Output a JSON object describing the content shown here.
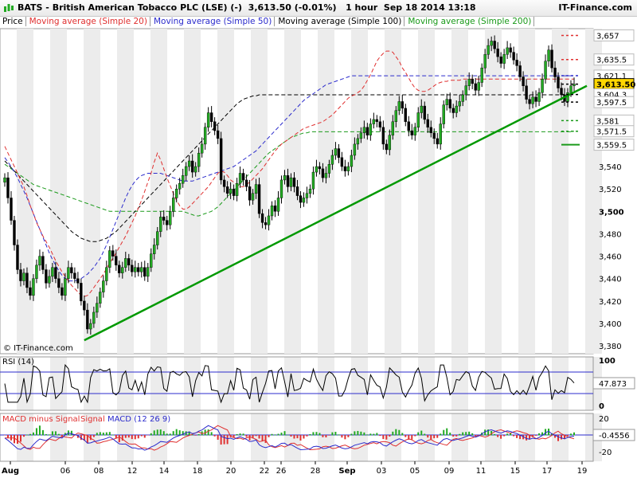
{
  "header": {
    "title": "BATS - British American Tobacco PLC (LSE) (-)",
    "last": "3,613.50 (-0.01%)",
    "interval": "1 hour",
    "datetime": "Sep 18 2014 13:18",
    "brand": "IT-Finance.com"
  },
  "legend": {
    "price": "Price",
    "ma20": "Moving average (Simple 20)",
    "ma50": "Moving average (Simple 50)",
    "ma100": "Moving average (Simple 100)",
    "ma200": "Moving average (Simple 200)"
  },
  "watermark": "© IT-Finance.com",
  "rsi": {
    "label": "RSI (14)",
    "value": "47.873",
    "ticks": [
      "100",
      "50",
      "0"
    ]
  },
  "macd": {
    "label_hist": "MACD minus Signal",
    "label_signal": "Signal",
    "label_macd": "MACD (12 26 9)",
    "value": "-0.4556",
    "ticks": [
      "20",
      "0",
      "-20"
    ]
  },
  "colors": {
    "up": "#22aa22",
    "down": "#000000",
    "ma20": "#e03030",
    "ma50": "#2b2bcc",
    "ma100": "#000000",
    "ma200": "#1a9a1a",
    "trend": "#009900",
    "last_tag": "#ffd700"
  },
  "chart_data": {
    "type": "candlestick",
    "interval": "1 hour",
    "ylim": [
      3373,
      3663
    ],
    "y_ticks": [
      3380,
      3400,
      3420,
      3440,
      3460,
      3480,
      3500,
      3520,
      3540
    ],
    "x_ticks": [
      "Aug",
      "06",
      "08",
      "12",
      "14",
      "18",
      "20",
      "22",
      "26",
      "28",
      "Sep",
      "03",
      "05",
      "09",
      "11",
      "15",
      "17",
      "19"
    ],
    "right_levels": [
      {
        "label": "3,657",
        "value": 3657,
        "color": "#e03030"
      },
      {
        "label": "3,635.5",
        "value": 3635.5,
        "color": "#e03030"
      },
      {
        "label": "3,621.1",
        "value": 3621.1,
        "color": "#2b2bcc"
      },
      {
        "label": "3,613.50",
        "value": 3613.5,
        "color": "#000000"
      },
      {
        "label": "3,604.3",
        "value": 3604.3,
        "color": "#000000"
      },
      {
        "label": "3,597.5",
        "value": 3597.5,
        "color": "#000000"
      },
      {
        "label": "3,581",
        "value": 3581,
        "color": "#1a9a1a"
      },
      {
        "label": "3,571.5",
        "value": 3571.5,
        "color": "#1a9a1a"
      },
      {
        "label": "3,559.5",
        "value": 3559.5,
        "color": "#1a9a1a"
      }
    ],
    "close": [
      3530,
      3512,
      3492,
      3470,
      3448,
      3438,
      3445,
      3432,
      3425,
      3440,
      3452,
      3460,
      3448,
      3436,
      3442,
      3450,
      3440,
      3432,
      3425,
      3440,
      3450,
      3445,
      3440,
      3436,
      3420,
      3412,
      3395,
      3400,
      3410,
      3418,
      3428,
      3438,
      3450,
      3465,
      3460,
      3452,
      3445,
      3450,
      3458,
      3452,
      3446,
      3450,
      3446,
      3450,
      3442,
      3450,
      3462,
      3470,
      3482,
      3495,
      3492,
      3488,
      3500,
      3512,
      3520,
      3525,
      3532,
      3540,
      3545,
      3535,
      3540,
      3552,
      3560,
      3575,
      3588,
      3580,
      3572,
      3565,
      3528,
      3522,
      3516,
      3520,
      3514,
      3525,
      3534,
      3528,
      3522,
      3510,
      3516,
      3524,
      3498,
      3490,
      3488,
      3496,
      3505,
      3500,
      3512,
      3528,
      3532,
      3522,
      3530,
      3522,
      3514,
      3508,
      3512,
      3516,
      3520,
      3535,
      3540,
      3538,
      3530,
      3534,
      3542,
      3550,
      3556,
      3548,
      3540,
      3536,
      3540,
      3550,
      3560,
      3565,
      3570,
      3575,
      3568,
      3578,
      3582,
      3580,
      3575,
      3560,
      3555,
      3568,
      3580,
      3590,
      3598,
      3592,
      3580,
      3572,
      3568,
      3575,
      3588,
      3594,
      3582,
      3575,
      3570,
      3565,
      3560,
      3578,
      3595,
      3600,
      3592,
      3588,
      3594,
      3598,
      3604,
      3612,
      3618,
      3614,
      3608,
      3615,
      3628,
      3640,
      3648,
      3652,
      3645,
      3638,
      3632,
      3640,
      3646,
      3642,
      3635,
      3630,
      3620,
      3612,
      3600,
      3596,
      3602,
      3598,
      3606,
      3618,
      3634,
      3644,
      3628,
      3620,
      3610,
      3604,
      3598,
      3606,
      3612,
      3613.5
    ],
    "ma20": [
      3558,
      3552,
      3546,
      3540,
      3534,
      3528,
      3522,
      3514,
      3505,
      3498,
      3490,
      3484,
      3478,
      3473,
      3468,
      3462,
      3456,
      3451,
      3446,
      3442,
      3438,
      3434,
      3431,
      3428,
      3425,
      3424,
      3425,
      3428,
      3432,
      3436,
      3440,
      3444,
      3449,
      3454,
      3458,
      3463,
      3468,
      3473,
      3478,
      3484,
      3490,
      3496,
      3503,
      3510,
      3518,
      3526,
      3534,
      3544,
      3552,
      3546,
      3538,
      3530,
      3523,
      3516,
      3510,
      3505,
      3502,
      3502,
      3504,
      3507,
      3510,
      3513,
      3516,
      3519,
      3522,
      3526,
      3530,
      3534,
      3536,
      3535,
      3532,
      3528,
      3526,
      3524,
      3522,
      3522,
      3524,
      3526,
      3529,
      3532,
      3535,
      3538,
      3542,
      3546,
      3550,
      3554,
      3557,
      3560,
      3562,
      3564,
      3566,
      3568,
      3570,
      3572,
      3574,
      3575,
      3576,
      3577,
      3578,
      3579,
      3580,
      3582,
      3584,
      3586,
      3589,
      3592,
      3595,
      3598,
      3601,
      3603,
      3604,
      3606,
      3608,
      3612,
      3617,
      3622,
      3628,
      3634,
      3638,
      3641,
      3643,
      3643,
      3642,
      3638,
      3634,
      3628,
      3624,
      3619,
      3614,
      3610,
      3608,
      3607,
      3607,
      3608,
      3610,
      3612,
      3614,
      3615,
      3616,
      3616,
      3617,
      3617,
      3617,
      3617,
      3618,
      3618,
      3618,
      3618,
      3618,
      3618,
      3618,
      3618,
      3618,
      3618,
      3618,
      3618,
      3618,
      3618,
      3618,
      3618,
      3618,
      3618,
      3618,
      3618,
      3618,
      3618,
      3618,
      3618,
      3618,
      3618,
      3618,
      3618,
      3618,
      3618,
      3618,
      3618,
      3618,
      3618,
      3618,
      3618
    ],
    "ma50": [
      3548,
      3544,
      3540,
      3535,
      3530,
      3524,
      3518,
      3512,
      3505,
      3498,
      3491,
      3484,
      3477,
      3470,
      3463,
      3457,
      3452,
      3447,
      3443,
      3440,
      3438,
      3438,
      3438,
      3439,
      3440,
      3442,
      3444,
      3447,
      3450,
      3454,
      3458,
      3464,
      3470,
      3477,
      3484,
      3491,
      3498,
      3505,
      3512,
      3518,
      3523,
      3527,
      3530,
      3532,
      3533,
      3534,
      3534,
      3534,
      3534,
      3534,
      3533,
      3532,
      3531,
      3530,
      3529,
      3528,
      3527,
      3527,
      3527,
      3527,
      3528,
      3529,
      3530,
      3531,
      3532,
      3533,
      3534,
      3535,
      3536,
      3537,
      3538,
      3539,
      3540,
      3542,
      3544,
      3546,
      3548,
      3550,
      3552,
      3554,
      3557,
      3560,
      3563,
      3566,
      3569,
      3572,
      3575,
      3578,
      3581,
      3584,
      3587,
      3590,
      3593,
      3596,
      3599,
      3601,
      3603,
      3605,
      3607,
      3609,
      3611,
      3613,
      3614,
      3615,
      3616,
      3617,
      3618,
      3619,
      3620,
      3621,
      3621,
      3621,
      3621,
      3621,
      3621,
      3621,
      3621,
      3621,
      3621,
      3621,
      3621,
      3621,
      3621,
      3621,
      3621,
      3621,
      3621,
      3621,
      3621,
      3621,
      3621,
      3621,
      3621,
      3621,
      3621,
      3621,
      3621,
      3621,
      3621,
      3621,
      3621,
      3621,
      3621,
      3621,
      3621,
      3621,
      3621,
      3621,
      3621,
      3621,
      3621,
      3621,
      3621,
      3621,
      3621,
      3621,
      3621,
      3621,
      3621,
      3621,
      3621,
      3621,
      3621,
      3621,
      3621,
      3621,
      3621,
      3621,
      3621,
      3621,
      3621,
      3621,
      3621,
      3621,
      3621,
      3621,
      3621,
      3621,
      3621,
      3621.1
    ],
    "ma100": [
      3545,
      3542,
      3539,
      3536,
      3533,
      3530,
      3527,
      3524,
      3521,
      3518,
      3515,
      3512,
      3509,
      3506,
      3503,
      3500,
      3497,
      3494,
      3491,
      3488,
      3485,
      3482,
      3480,
      3478,
      3476,
      3475,
      3474,
      3473,
      3473,
      3473,
      3474,
      3475,
      3476,
      3478,
      3480,
      3482,
      3485,
      3488,
      3491,
      3494,
      3497,
      3500,
      3503,
      3506,
      3509,
      3512,
      3515,
      3518,
      3521,
      3524,
      3527,
      3530,
      3533,
      3536,
      3539,
      3542,
      3545,
      3548,
      3551,
      3554,
      3557,
      3560,
      3563,
      3566,
      3569,
      3572,
      3575,
      3578,
      3581,
      3584,
      3587,
      3590,
      3593,
      3596,
      3598,
      3600,
      3601,
      3602,
      3603,
      3603,
      3604,
      3604,
      3604,
      3604,
      3604,
      3604,
      3604,
      3604,
      3604,
      3604,
      3604,
      3604,
      3604,
      3604,
      3604,
      3604,
      3604,
      3604,
      3604,
      3604,
      3604,
      3604,
      3604,
      3604,
      3604,
      3604,
      3604,
      3604,
      3604,
      3604,
      3604,
      3604,
      3604,
      3604,
      3604,
      3604,
      3604,
      3604,
      3604,
      3604,
      3604,
      3604,
      3604,
      3604,
      3604,
      3604,
      3604,
      3604,
      3604,
      3604,
      3604,
      3604,
      3604,
      3604,
      3604,
      3604,
      3604,
      3604,
      3604,
      3604,
      3604,
      3604,
      3604,
      3604,
      3604,
      3604,
      3604,
      3604,
      3604,
      3604,
      3604,
      3604,
      3604,
      3604,
      3604,
      3604,
      3604,
      3604,
      3604,
      3604,
      3604,
      3604,
      3604,
      3604,
      3604,
      3604,
      3604,
      3604,
      3604,
      3604,
      3604,
      3604,
      3604,
      3604,
      3604,
      3604,
      3604,
      3604,
      3604,
      3604.3
    ],
    "ma200": [
      3542,
      3540,
      3538,
      3536,
      3534,
      3532,
      3530,
      3528,
      3526,
      3524,
      3523,
      3522,
      3521,
      3520,
      3519,
      3518,
      3517,
      3516,
      3515,
      3514,
      3513,
      3512,
      3511,
      3510,
      3509,
      3508,
      3507,
      3506,
      3505,
      3504,
      3503,
      3502,
      3501,
      3500,
      3500,
      3500,
      3500,
      3500,
      3500,
      3500,
      3500,
      3500,
      3500,
      3500,
      3500,
      3500,
      3500,
      3500,
      3500,
      3500,
      3500,
      3500,
      3500,
      3500,
      3500,
      3500,
      3500,
      3499,
      3498,
      3497,
      3496,
      3496,
      3497,
      3498,
      3499,
      3500,
      3502,
      3504,
      3507,
      3510,
      3513,
      3516,
      3519,
      3522,
      3525,
      3528,
      3531,
      3534,
      3537,
      3540,
      3543,
      3546,
      3549,
      3552,
      3554,
      3556,
      3558,
      3560,
      3562,
      3564,
      3566,
      3567,
      3568,
      3569,
      3570,
      3570,
      3571,
      3571,
      3571,
      3571,
      3571,
      3571,
      3571,
      3571,
      3571,
      3571,
      3571,
      3571,
      3571,
      3571,
      3571,
      3571,
      3571,
      3571,
      3571,
      3571,
      3571,
      3571,
      3571,
      3571,
      3571,
      3571,
      3571,
      3571,
      3571,
      3571,
      3571,
      3571,
      3571,
      3571,
      3571,
      3571,
      3571,
      3571,
      3571,
      3571,
      3571,
      3571,
      3571,
      3571,
      3571,
      3571,
      3571,
      3571,
      3571,
      3571,
      3571,
      3571,
      3571,
      3571,
      3571,
      3571,
      3571,
      3571,
      3571,
      3571,
      3571,
      3571,
      3571,
      3571,
      3571,
      3571,
      3571,
      3571,
      3571,
      3571,
      3571,
      3571,
      3571,
      3571,
      3571,
      3571,
      3571,
      3571,
      3571,
      3571,
      3571,
      3571,
      3571,
      3571.5
    ],
    "trendline": {
      "from_index": 25,
      "from_value": 3385,
      "to_index": 185,
      "to_value": 3610
    }
  }
}
